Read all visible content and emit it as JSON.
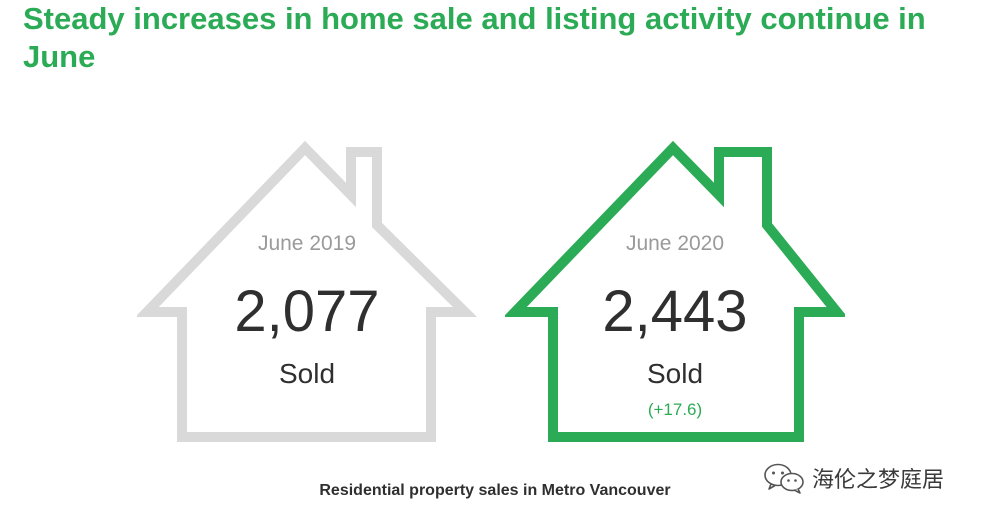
{
  "headline": "Steady increases in home sale and listing activity continue in June",
  "houses": [
    {
      "period": "June 2019",
      "count": "2,077",
      "label": "Sold",
      "outline_color": "#d9d9d9"
    },
    {
      "period": "June 2020",
      "count": "2,443",
      "label": "Sold",
      "change": "(+17.6)",
      "outline_color": "#2bab55"
    }
  ],
  "caption": "Residential property sales in Metro Vancouver",
  "watermark": {
    "icon": "wechat-icon",
    "text": "海伦之梦庭居"
  },
  "colors": {
    "accent": "#2bab55",
    "muted": "#9a9a9a",
    "text": "#2f2f2f",
    "outline_muted": "#d9d9d9"
  }
}
